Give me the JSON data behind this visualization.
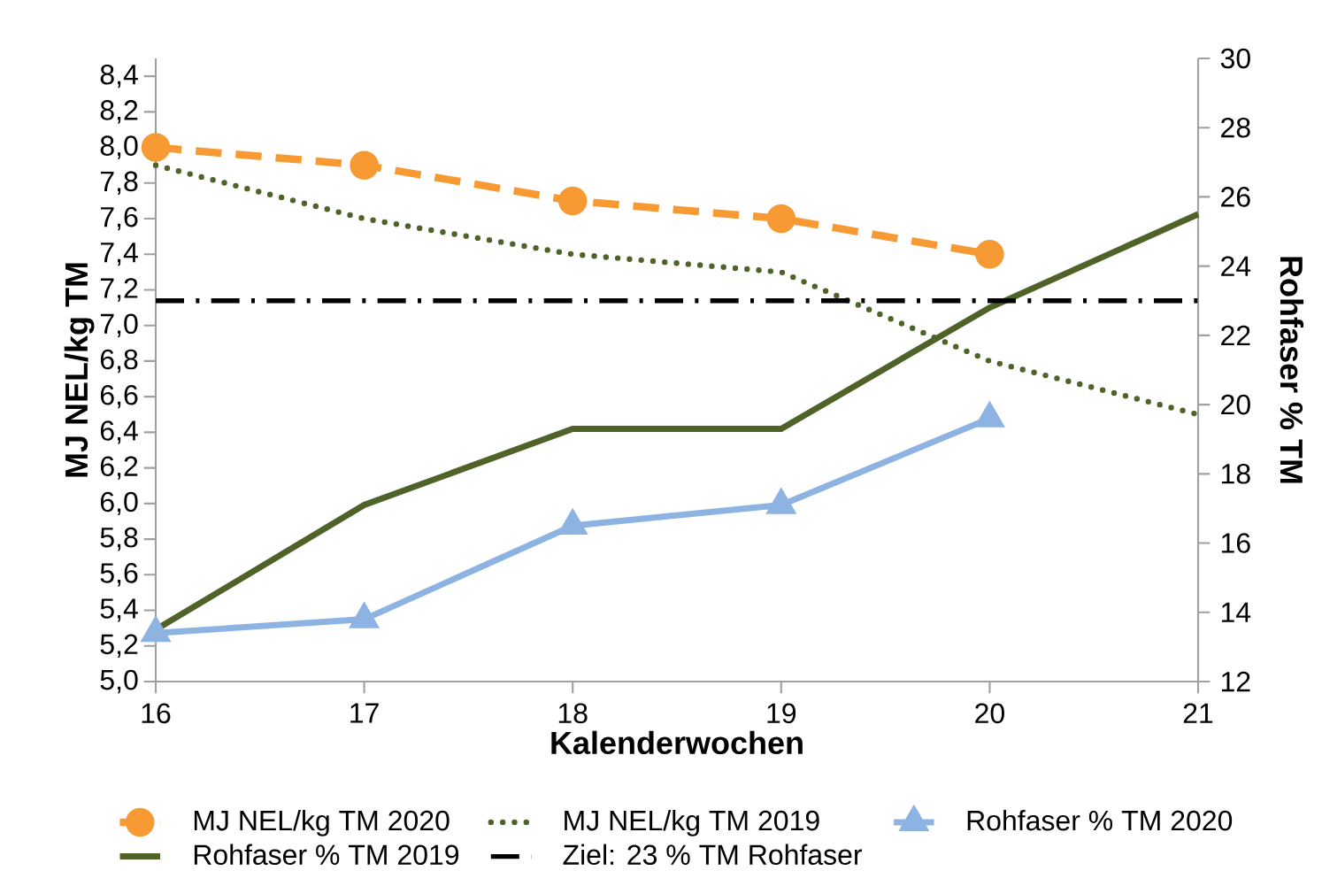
{
  "chart_data": {
    "type": "line",
    "xlabel": "Kalenderwochen",
    "ylabel": "MJ NEL/kg TM",
    "y2label": "Rohfaser % TM",
    "x": [
      16,
      17,
      18,
      19,
      20,
      21
    ],
    "xlim": [
      16,
      21
    ],
    "xticks": [
      16,
      17,
      18,
      19,
      20,
      21
    ],
    "ylim": [
      5.0,
      8.5
    ],
    "yticks": [
      {
        "value": 5.0,
        "label": "5,0"
      },
      {
        "value": 5.2,
        "label": "5,2"
      },
      {
        "value": 5.4,
        "label": "5,4"
      },
      {
        "value": 5.6,
        "label": "5,6"
      },
      {
        "value": 5.8,
        "label": "5,8"
      },
      {
        "value": 6.0,
        "label": "6,0"
      },
      {
        "value": 6.2,
        "label": "6,2"
      },
      {
        "value": 6.4,
        "label": "6,4"
      },
      {
        "value": 6.6,
        "label": "6,6"
      },
      {
        "value": 6.8,
        "label": "6,8"
      },
      {
        "value": 7.0,
        "label": "7,0"
      },
      {
        "value": 7.2,
        "label": "7,2"
      },
      {
        "value": 7.4,
        "label": "7,4"
      },
      {
        "value": 7.6,
        "label": "7,6"
      },
      {
        "value": 7.8,
        "label": "7,8"
      },
      {
        "value": 8.0,
        "label": "8,0"
      },
      {
        "value": 8.2,
        "label": "8,2"
      },
      {
        "value": 8.4,
        "label": "8,4"
      }
    ],
    "y2lim": [
      12,
      30
    ],
    "y2ticks": [
      12,
      14,
      16,
      18,
      20,
      22,
      24,
      26,
      28,
      30
    ],
    "series": [
      {
        "name": "MJ NEL/kg TM 2020",
        "color": "#f79a34",
        "values": [
          8.0,
          7.9,
          7.7,
          7.6,
          7.4,
          null
        ],
        "marker": "circle",
        "line_style": "dashed"
      },
      {
        "name": "MJ NEL/kg TM 2019",
        "color": "#4f6228",
        "values": [
          7.9,
          7.6,
          7.4,
          7.3,
          6.8,
          6.5
        ],
        "marker": "none",
        "line_style": "dotted"
      },
      {
        "name": "Rohfaser % TM 2020",
        "color": "#8db3e2",
        "values": [
          13.4,
          13.8,
          16.5,
          17.1,
          19.6,
          null
        ],
        "marker": "triangle",
        "line_style": "solid",
        "axis": "y2"
      },
      {
        "name": "Rohfaser % TM 2019",
        "color": "#4f6228",
        "values": [
          13.5,
          17.1,
          19.3,
          19.3,
          22.8,
          25.5
        ],
        "marker": "none",
        "line_style": "solid",
        "axis": "y2"
      }
    ],
    "ref_lines": [
      {
        "axis": "y2",
        "value": 23,
        "label": "Ziel: 23 % TM Rohfaser",
        "color": "#000000",
        "line_style": "dashdot"
      }
    ],
    "legend": "bottom"
  }
}
